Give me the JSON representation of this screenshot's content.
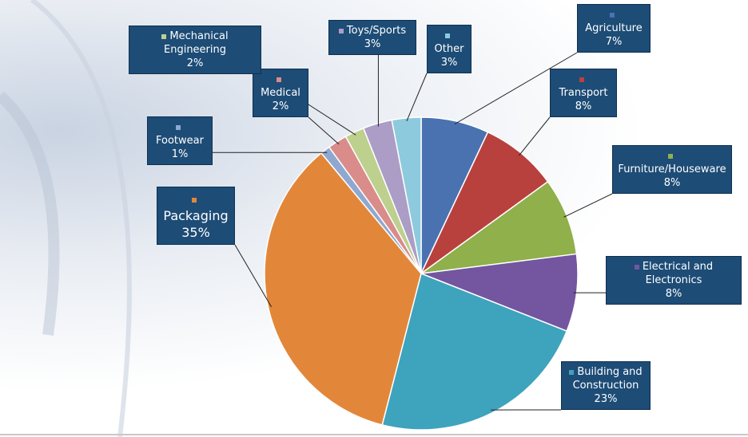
{
  "chart_data": {
    "type": "pie",
    "categories": [
      "Agriculture",
      "Transport",
      "Furniture/Houseware",
      "Electrical and Electronics",
      "Building and Construction",
      "Packaging",
      "Footwear",
      "Medical",
      "Mechanical Engineering",
      "Toys/Sports",
      "Other"
    ],
    "values": [
      7,
      8,
      8,
      8,
      23,
      35,
      1,
      2,
      2,
      3,
      3
    ],
    "value_labels": [
      "7%",
      "8%",
      "8%",
      "8%",
      "23%",
      "35%",
      "1%",
      "2%",
      "2%",
      "3%",
      "3%"
    ],
    "colors": [
      "#4a72b0",
      "#b8413e",
      "#8fb04a",
      "#7355a0",
      "#3ea3bd",
      "#e2873a",
      "#8fa8d0",
      "#d98c8a",
      "#bdd08e",
      "#ab9dc6",
      "#8dcadd"
    ]
  }
}
